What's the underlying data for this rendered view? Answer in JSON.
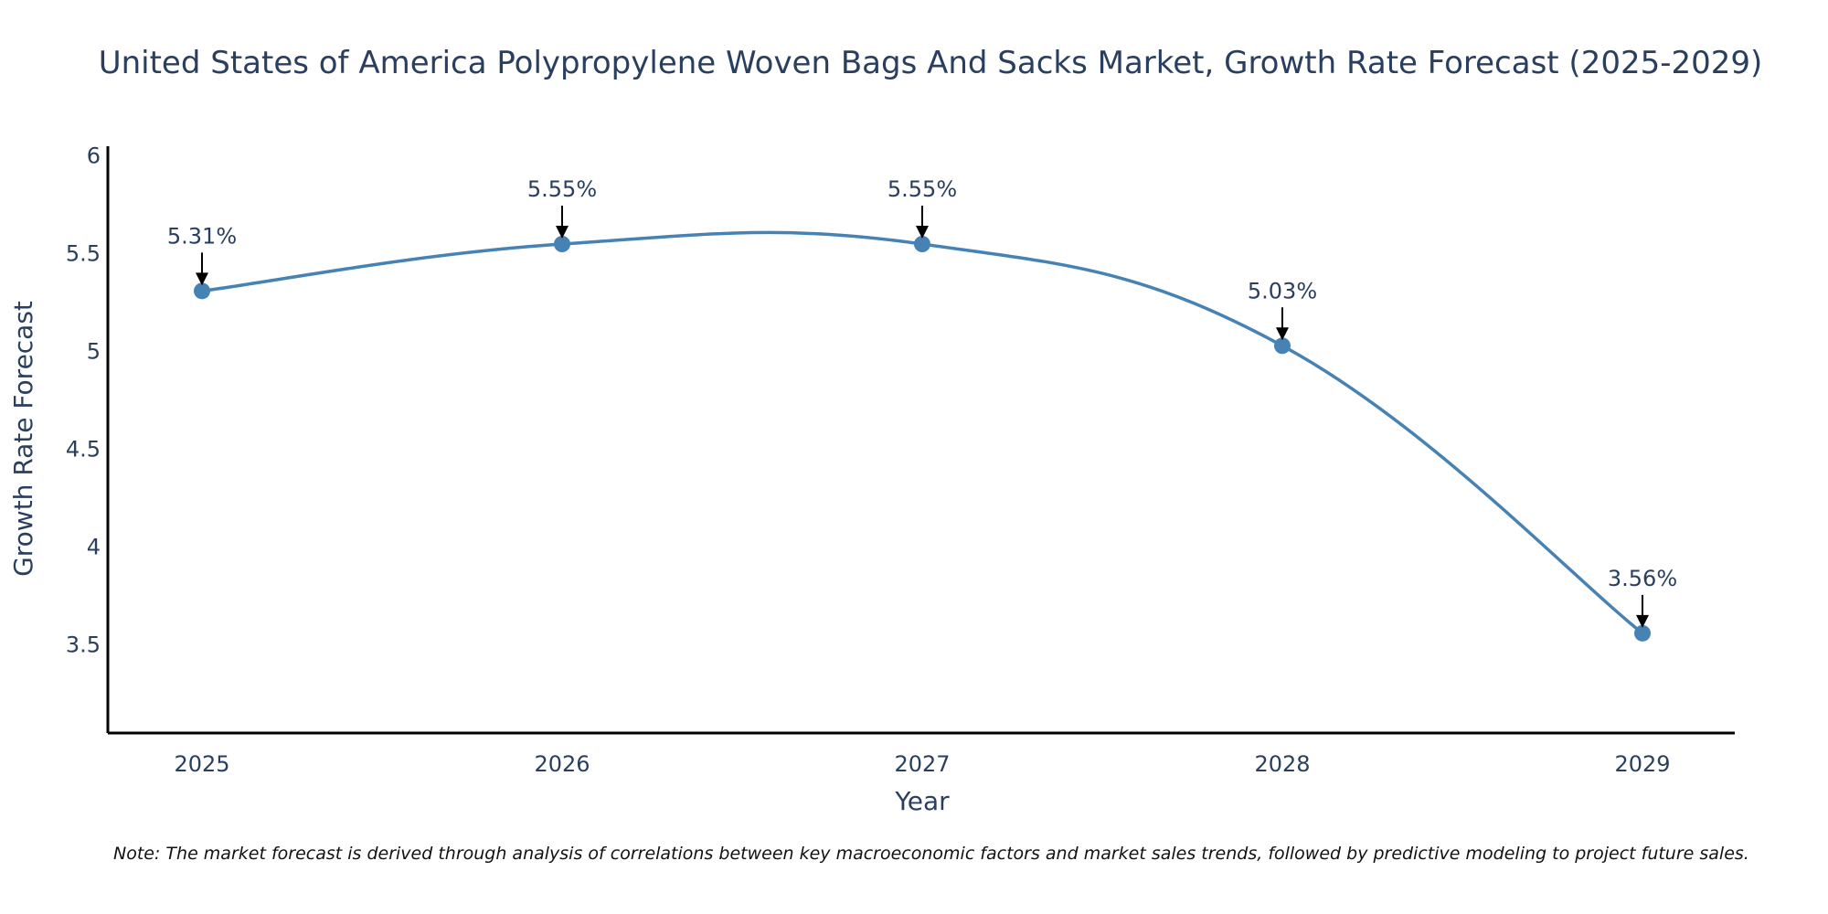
{
  "chart_data": {
    "type": "line",
    "title": "United States of America Polypropylene Woven Bags And Sacks Market, Growth Rate Forecast (2025-2029)",
    "xlabel": "Year",
    "ylabel": "Growth Rate Forecast",
    "categories": [
      "2025",
      "2026",
      "2027",
      "2028",
      "2029"
    ],
    "values": [
      5.31,
      5.55,
      5.55,
      5.03,
      3.56
    ],
    "data_labels": [
      "5.31%",
      "5.55%",
      "5.55%",
      "5.03%",
      "3.56%"
    ],
    "yticks": [
      3.5,
      4,
      4.5,
      5,
      5.5,
      6
    ],
    "ytick_labels": [
      "3.5",
      "4",
      "4.5",
      "5",
      "5.5",
      "6"
    ],
    "ylim": [
      3.05,
      6.05
    ],
    "grid": false,
    "line_shape": "spline",
    "colors": {
      "line": "#4682b4",
      "marker": "#4682b4",
      "arrow": "#000000",
      "axis": "#000000"
    }
  },
  "note": "Note: The market forecast is derived through analysis of correlations between key macroeconomic factors and market sales trends, followed by predictive modeling to project future sales."
}
